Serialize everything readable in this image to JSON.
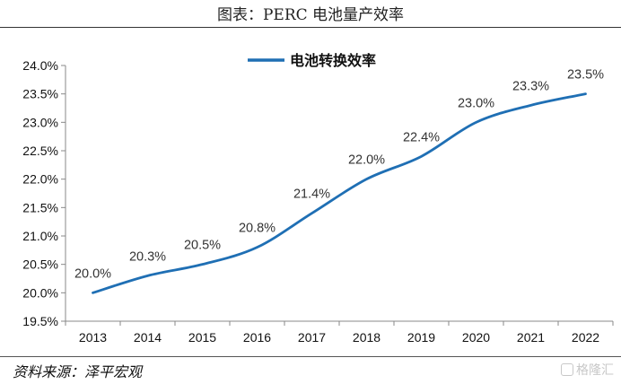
{
  "header": {
    "title": "图表：PERC 电池量产效率"
  },
  "footer": {
    "source": "资料来源：泽平宏观",
    "watermark": "格隆汇"
  },
  "chart_data": {
    "type": "line",
    "categories": [
      "2013",
      "2014",
      "2015",
      "2016",
      "2017",
      "2018",
      "2019",
      "2020",
      "2021",
      "2022"
    ],
    "series": [
      {
        "name": "电池转换效率",
        "values": [
          20.0,
          20.3,
          20.5,
          20.8,
          21.4,
          22.0,
          22.4,
          23.0,
          23.3,
          23.5
        ],
        "color": "#1f6fb4"
      }
    ],
    "data_labels": [
      "20.0%",
      "20.3%",
      "20.5%",
      "20.8%",
      "21.4%",
      "22.0%",
      "22.4%",
      "23.0%",
      "23.3%",
      "23.5%"
    ],
    "ylim": [
      19.5,
      24.0
    ],
    "yticks": [
      19.5,
      20.0,
      20.5,
      21.0,
      21.5,
      22.0,
      22.5,
      23.0,
      23.5,
      24.0
    ],
    "ytick_labels": [
      "19.5%",
      "20.0%",
      "20.5%",
      "21.0%",
      "21.5%",
      "22.0%",
      "22.5%",
      "23.0%",
      "23.5%",
      "24.0%"
    ],
    "legend_position": "top-center",
    "grid": false
  }
}
